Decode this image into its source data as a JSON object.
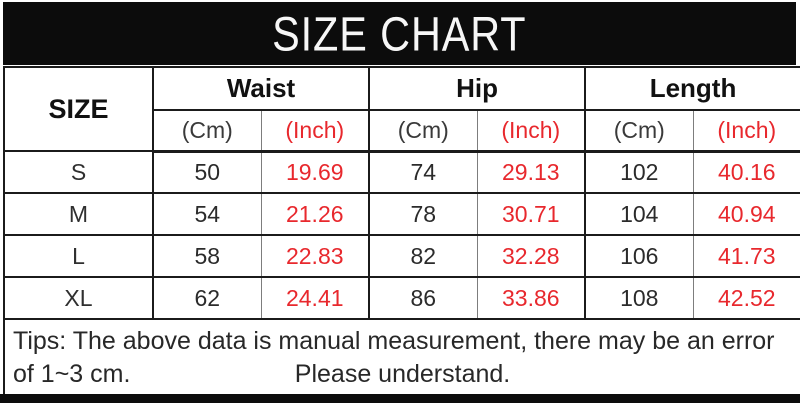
{
  "title": "SIZE CHART",
  "colors": {
    "accent_red": "#e8282d",
    "bar_black": "#0c0c0c",
    "border_dark": "#1b1b1b"
  },
  "table": {
    "size_header": "SIZE",
    "groups": [
      {
        "label": "Waist"
      },
      {
        "label": "Hip"
      },
      {
        "label": "Length"
      }
    ],
    "unit_cm": "(Cm)",
    "unit_inch": "(Inch)",
    "rows": [
      {
        "size": "S",
        "waist_cm": "50",
        "waist_inch": "19.69",
        "hip_cm": "74",
        "hip_inch": "29.13",
        "length_cm": "102",
        "length_inch": "40.16"
      },
      {
        "size": "M",
        "waist_cm": "54",
        "waist_inch": "21.26",
        "hip_cm": "78",
        "hip_inch": "30.71",
        "length_cm": "104",
        "length_inch": "40.94"
      },
      {
        "size": "L",
        "waist_cm": "58",
        "waist_inch": "22.83",
        "hip_cm": "82",
        "hip_inch": "32.28",
        "length_cm": "106",
        "length_inch": "41.73"
      },
      {
        "size": "XL",
        "waist_cm": "62",
        "waist_inch": "24.41",
        "hip_cm": "86",
        "hip_inch": "33.86",
        "length_cm": "108",
        "length_inch": "42.52"
      }
    ]
  },
  "tips": {
    "line1": "Tips: The above data is manual measurement, there may be an error",
    "line2_left": "of 1~3 cm.",
    "line2_center": "Please understand."
  },
  "chart_data": {
    "type": "table",
    "title": "SIZE CHART",
    "columns": [
      "SIZE",
      "Waist (Cm)",
      "Waist (Inch)",
      "Hip (Cm)",
      "Hip (Inch)",
      "Length (Cm)",
      "Length (Inch)"
    ],
    "rows": [
      [
        "S",
        50,
        19.69,
        74,
        29.13,
        102,
        40.16
      ],
      [
        "M",
        54,
        21.26,
        78,
        30.71,
        104,
        40.94
      ],
      [
        "L",
        58,
        22.83,
        82,
        32.28,
        106,
        41.73
      ],
      [
        "XL",
        62,
        24.41,
        86,
        33.86,
        108,
        42.52
      ]
    ],
    "note": "Tips: The above data is manual measurement, there may be an error of 1~3 cm. Please understand."
  }
}
